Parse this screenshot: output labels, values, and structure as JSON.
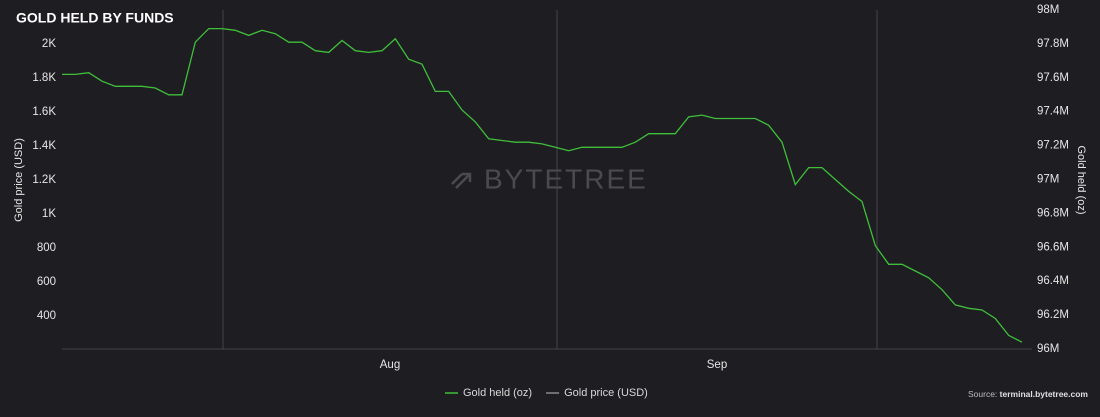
{
  "chart_data": {
    "type": "line",
    "title": "GOLD HELD BY FUNDS",
    "y_axis_label": "Gold price (USD)",
    "y2_axis_label": "Gold held (oz)",
    "watermark": "BYTETREE",
    "source_label": "Source:",
    "source_url": "terminal.bytetree.com",
    "x_labels": [
      "Aug",
      "Sep"
    ],
    "categories": [
      null,
      null,
      null,
      null,
      null,
      null,
      null,
      null,
      null,
      null,
      null,
      null,
      null,
      null,
      null,
      null,
      null,
      null,
      null,
      null,
      null,
      null,
      null,
      null,
      null,
      null,
      null,
      null,
      null,
      null,
      null,
      null,
      null,
      null,
      null,
      null,
      null,
      null,
      null,
      null,
      null,
      null,
      null,
      null,
      null,
      null,
      null,
      null,
      null,
      null,
      null,
      null,
      null,
      null,
      null,
      null,
      null,
      null,
      null,
      null,
      null,
      null,
      null,
      null,
      null,
      null,
      null,
      null,
      null,
      null,
      null,
      null,
      null
    ],
    "series": [
      {
        "name": "Gold held (oz)",
        "color": "#3fbf3a",
        "axis": "y2",
        "values": [
          97620000,
          97620000,
          97630000,
          97580000,
          97550000,
          97550000,
          97550000,
          97540000,
          97500000,
          97500000,
          97810000,
          97890000,
          97890000,
          97880000,
          97850000,
          97880000,
          97860000,
          97810000,
          97810000,
          97760000,
          97750000,
          97820000,
          97760000,
          97750000,
          97760000,
          97830000,
          97710000,
          97680000,
          97520000,
          97520000,
          97410000,
          97340000,
          97240000,
          97230000,
          97220000,
          97220000,
          97210000,
          97190000,
          97170000,
          97190000,
          97190000,
          97190000,
          97190000,
          97220000,
          97270000,
          97270000,
          97270000,
          97370000,
          97380000,
          97360000,
          97360000,
          97360000,
          97360000,
          97320000,
          97220000,
          96970000,
          97070000,
          97070000,
          97000000,
          96930000,
          96870000,
          96610000,
          96500000,
          96500000,
          96460000,
          96420000,
          96350000,
          96260000,
          96240000,
          96230000,
          96180000,
          96080000,
          96040000
        ]
      },
      {
        "name": "Gold price (USD)",
        "color": "#8a8a8a",
        "axis": "y",
        "visible": false
      }
    ],
    "ylim": [
      206,
      2200
    ],
    "yticks": [
      400,
      600,
      800,
      {
        "value": 1000,
        "label": "1K"
      },
      {
        "value": 1200,
        "label": "1.2K"
      },
      {
        "value": 1400,
        "label": "1.4K"
      },
      {
        "value": 1600,
        "label": "1.6K"
      },
      {
        "value": 1800,
        "label": "1.8K"
      },
      {
        "value": 2000,
        "label": "2K"
      }
    ],
    "y2lim": [
      96000000,
      98000000
    ],
    "y2ticks": [
      {
        "value": 96000000,
        "label": "96M"
      },
      {
        "value": 96200000,
        "label": "96.2M"
      },
      {
        "value": 96400000,
        "label": "96.4M"
      },
      {
        "value": 96600000,
        "label": "96.6M"
      },
      {
        "value": 96800000,
        "label": "96.8M"
      },
      {
        "value": 97000000,
        "label": "97M"
      },
      {
        "value": 97200000,
        "label": "97.2M"
      },
      {
        "value": 97400000,
        "label": "97.4M"
      },
      {
        "value": 97600000,
        "label": "97.6M"
      },
      {
        "value": 97800000,
        "label": "97.8M"
      },
      {
        "value": 98000000,
        "label": "98M"
      }
    ],
    "grid": "x",
    "legend": "bottom"
  }
}
